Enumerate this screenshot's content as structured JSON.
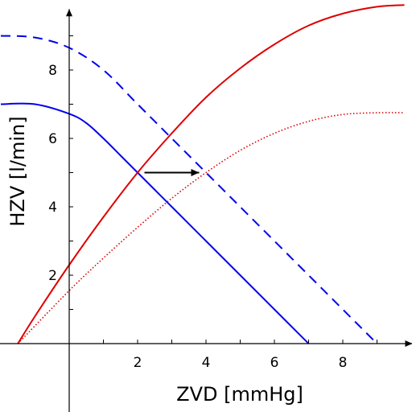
{
  "chart_data": {
    "type": "line",
    "xlabel": "ZVD [mmHg]",
    "ylabel": "HZV [l/min]",
    "xlim": [
      -1.5,
      9.8
    ],
    "ylim": [
      -2,
      9.9
    ],
    "x_ticks": [
      2,
      4,
      6,
      8
    ],
    "y_ticks": [
      2,
      4,
      6,
      8
    ],
    "grid": false,
    "legend": "none",
    "series": [
      {
        "color": "#0000ee",
        "dash": "solid",
        "x": [
          -2.0,
          -1.0,
          0.0,
          0.5,
          1.0,
          1.5,
          2.0,
          2.5,
          3.0,
          4.0,
          5.0,
          6.0,
          7.0
        ],
        "y": [
          7.0,
          7.0,
          6.72,
          6.45,
          6.0,
          5.5,
          5.0,
          4.5,
          4.0,
          3.0,
          2.0,
          1.0,
          0.0
        ]
      },
      {
        "color": "#0000ee",
        "dash": "dashed",
        "x": [
          -2.0,
          -1.0,
          0.0,
          1.0,
          2.0,
          3.0,
          4.0,
          5.0,
          6.0,
          7.0,
          8.0,
          9.0
        ],
        "y": [
          9.0,
          8.95,
          8.65,
          8.0,
          7.0,
          6.0,
          5.0,
          4.0,
          3.0,
          2.0,
          1.0,
          0.0
        ]
      },
      {
        "color": "#dd0000",
        "dash": "solid",
        "x": [
          -1.5,
          -1.0,
          0.0,
          1.0,
          2.0,
          3.0,
          4.0,
          5.0,
          6.0,
          7.0,
          8.0,
          9.0,
          9.8
        ],
        "y": [
          0.0,
          0.8,
          2.3,
          3.7,
          5.0,
          6.15,
          7.2,
          8.05,
          8.75,
          9.3,
          9.65,
          9.85,
          9.9
        ]
      },
      {
        "color": "#dd0000",
        "dash": "dotted",
        "x": [
          -1.5,
          0.0,
          1.0,
          2.0,
          3.0,
          4.0,
          5.0,
          6.0,
          7.0,
          8.0,
          9.0,
          9.8
        ],
        "y": [
          0.0,
          1.55,
          2.5,
          3.4,
          4.25,
          5.0,
          5.65,
          6.15,
          6.5,
          6.7,
          6.75,
          6.75
        ]
      }
    ],
    "annotations": [
      {
        "type": "arrow",
        "from": [
          2.2,
          5.0
        ],
        "to": [
          3.8,
          5.0
        ],
        "color": "#000000"
      }
    ]
  }
}
